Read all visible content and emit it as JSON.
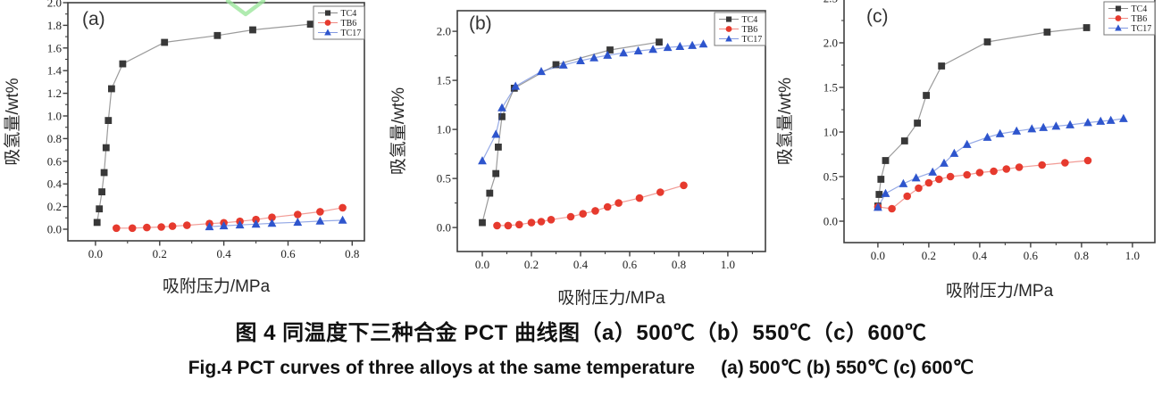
{
  "figure": {
    "caption_zh": "图 4 同温度下三种合金 PCT 曲线图（a）500℃（b）550℃（c）600℃",
    "caption_en": "Fig.4 PCT curves of three alloys at the same temperature     (a) 500℃ (b) 550℃ (c) 600℃"
  },
  "colors": {
    "tc4": "#383838",
    "tb6": "#e63a2e",
    "tc17": "#2e55cd",
    "axis": "#3f3f3f",
    "tick_label": "#222222",
    "legend_border": "#777777",
    "watermark_green": "#9ce69c",
    "caption_text": "#111111"
  },
  "chart_data": [
    {
      "type": "line",
      "panel_label": "(a)",
      "xlabel": "吸附压力/MPa",
      "ylabel": "吸氢量/wt%",
      "xlim": [
        -0.086,
        0.838
      ],
      "ylim": [
        -0.102,
        2.0
      ],
      "xticks": [
        0.0,
        0.2,
        0.4,
        0.6,
        0.8
      ],
      "yticks": [
        0.0,
        0.2,
        0.4,
        0.6,
        0.8,
        1.0,
        1.2,
        1.4,
        1.6,
        1.8,
        2.0
      ],
      "x_minor_step": 0.1,
      "y_minor_step": 0.1,
      "grid": false,
      "legend_position": "top-right",
      "series": [
        {
          "name": "TC4",
          "marker": "square",
          "color": "#383838",
          "points": [
            [
              0.005,
              0.06
            ],
            [
              0.012,
              0.18
            ],
            [
              0.02,
              0.33
            ],
            [
              0.027,
              0.5
            ],
            [
              0.033,
              0.72
            ],
            [
              0.04,
              0.96
            ],
            [
              0.05,
              1.24
            ],
            [
              0.085,
              1.46
            ],
            [
              0.215,
              1.65
            ],
            [
              0.38,
              1.71
            ],
            [
              0.49,
              1.76
            ],
            [
              0.67,
              1.81
            ]
          ]
        },
        {
          "name": "TB6",
          "marker": "circle",
          "color": "#e63a2e",
          "points": [
            [
              0.065,
              0.01
            ],
            [
              0.115,
              0.01
            ],
            [
              0.16,
              0.015
            ],
            [
              0.205,
              0.02
            ],
            [
              0.24,
              0.027
            ],
            [
              0.285,
              0.035
            ],
            [
              0.355,
              0.05
            ],
            [
              0.4,
              0.057
            ],
            [
              0.45,
              0.07
            ],
            [
              0.5,
              0.085
            ],
            [
              0.55,
              0.105
            ],
            [
              0.63,
              0.13
            ],
            [
              0.7,
              0.155
            ],
            [
              0.77,
              0.19
            ]
          ]
        },
        {
          "name": "TC17",
          "marker": "triangle",
          "color": "#2e55cd",
          "points": [
            [
              0.355,
              0.022
            ],
            [
              0.4,
              0.03
            ],
            [
              0.45,
              0.038
            ],
            [
              0.5,
              0.045
            ],
            [
              0.55,
              0.052
            ],
            [
              0.63,
              0.062
            ],
            [
              0.7,
              0.072
            ],
            [
              0.77,
              0.08
            ]
          ]
        }
      ]
    },
    {
      "type": "line",
      "panel_label": "(b)",
      "xlabel": "吸附压力/MPa",
      "ylabel": "吸氢量/wt%",
      "xlim": [
        -0.102,
        1.153
      ],
      "ylim": [
        -0.245,
        2.21
      ],
      "xticks": [
        0.0,
        0.2,
        0.4,
        0.6,
        0.8,
        1.0
      ],
      "yticks": [
        0.0,
        0.5,
        1.0,
        1.5,
        2.0
      ],
      "x_minor_step": 0.1,
      "y_minor_step": 0.25,
      "grid": false,
      "legend_position": "top-right",
      "series": [
        {
          "name": "TC4",
          "marker": "square",
          "color": "#383838",
          "points": [
            [
              0.0,
              0.05
            ],
            [
              0.03,
              0.35
            ],
            [
              0.055,
              0.55
            ],
            [
              0.065,
              0.82
            ],
            [
              0.08,
              1.13
            ],
            [
              0.13,
              1.42
            ],
            [
              0.3,
              1.66
            ],
            [
              0.52,
              1.81
            ],
            [
              0.72,
              1.89
            ]
          ]
        },
        {
          "name": "TB6",
          "marker": "circle",
          "color": "#e63a2e",
          "points": [
            [
              0.06,
              0.02
            ],
            [
              0.105,
              0.02
            ],
            [
              0.15,
              0.03
            ],
            [
              0.2,
              0.05
            ],
            [
              0.24,
              0.06
            ],
            [
              0.28,
              0.08
            ],
            [
              0.36,
              0.11
            ],
            [
              0.41,
              0.14
            ],
            [
              0.46,
              0.17
            ],
            [
              0.51,
              0.21
            ],
            [
              0.555,
              0.25
            ],
            [
              0.64,
              0.3
            ],
            [
              0.725,
              0.36
            ],
            [
              0.82,
              0.43
            ]
          ]
        },
        {
          "name": "TC17",
          "marker": "triangle",
          "color": "#2e55cd",
          "points": [
            [
              0.0,
              0.68
            ],
            [
              0.055,
              0.95
            ],
            [
              0.08,
              1.22
            ],
            [
              0.135,
              1.44
            ],
            [
              0.24,
              1.59
            ],
            [
              0.33,
              1.655
            ],
            [
              0.4,
              1.7
            ],
            [
              0.455,
              1.73
            ],
            [
              0.51,
              1.755
            ],
            [
              0.575,
              1.78
            ],
            [
              0.635,
              1.8
            ],
            [
              0.695,
              1.815
            ],
            [
              0.755,
              1.835
            ],
            [
              0.805,
              1.845
            ],
            [
              0.855,
              1.855
            ],
            [
              0.9,
              1.87
            ]
          ]
        }
      ]
    },
    {
      "type": "line",
      "panel_label": "(c)",
      "xlabel": "吸附压力/MPa",
      "ylabel": "吸氢量/wt%",
      "xlim": [
        -0.133,
        1.088
      ],
      "ylim": [
        -0.24,
        2.56
      ],
      "xticks": [
        0.0,
        0.2,
        0.4,
        0.6,
        0.8,
        1.0
      ],
      "yticks": [
        0.0,
        0.5,
        1.0,
        1.5,
        2.0,
        2.5
      ],
      "x_minor_step": 0.1,
      "y_minor_step": 0.25,
      "grid": false,
      "legend_position": "top-right",
      "series": [
        {
          "name": "TC4",
          "marker": "square",
          "color": "#383838",
          "points": [
            [
              0.0,
              0.17
            ],
            [
              0.005,
              0.3
            ],
            [
              0.012,
              0.47
            ],
            [
              0.03,
              0.68
            ],
            [
              0.105,
              0.9
            ],
            [
              0.155,
              1.1
            ],
            [
              0.19,
              1.41
            ],
            [
              0.25,
              1.74
            ],
            [
              0.43,
              2.01
            ],
            [
              0.665,
              2.12
            ],
            [
              0.82,
              2.17
            ]
          ]
        },
        {
          "name": "TB6",
          "marker": "circle",
          "color": "#e63a2e",
          "points": [
            [
              0.0,
              0.16
            ],
            [
              0.055,
              0.14
            ],
            [
              0.115,
              0.28
            ],
            [
              0.16,
              0.37
            ],
            [
              0.2,
              0.43
            ],
            [
              0.24,
              0.47
            ],
            [
              0.285,
              0.5
            ],
            [
              0.35,
              0.52
            ],
            [
              0.4,
              0.545
            ],
            [
              0.455,
              0.56
            ],
            [
              0.505,
              0.585
            ],
            [
              0.555,
              0.605
            ],
            [
              0.645,
              0.63
            ],
            [
              0.735,
              0.655
            ],
            [
              0.825,
              0.68
            ]
          ]
        },
        {
          "name": "TC17",
          "marker": "triangle",
          "color": "#2e55cd",
          "points": [
            [
              0.0,
              0.155
            ],
            [
              0.03,
              0.31
            ],
            [
              0.1,
              0.42
            ],
            [
              0.15,
              0.485
            ],
            [
              0.215,
              0.55
            ],
            [
              0.26,
              0.65
            ],
            [
              0.3,
              0.76
            ],
            [
              0.35,
              0.86
            ],
            [
              0.43,
              0.94
            ],
            [
              0.48,
              0.98
            ],
            [
              0.545,
              1.01
            ],
            [
              0.605,
              1.035
            ],
            [
              0.65,
              1.05
            ],
            [
              0.7,
              1.065
            ],
            [
              0.755,
              1.08
            ],
            [
              0.825,
              1.105
            ],
            [
              0.875,
              1.12
            ],
            [
              0.915,
              1.13
            ],
            [
              0.965,
              1.15
            ]
          ]
        }
      ]
    }
  ]
}
